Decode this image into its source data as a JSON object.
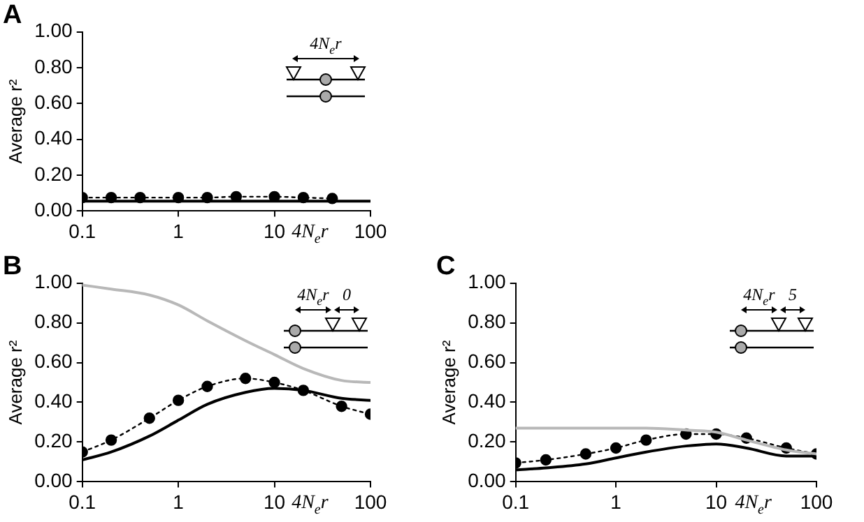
{
  "chart_data": [
    {
      "type": "line",
      "title": "A",
      "xlabel": "4N$_{e}$r",
      "ylabel": "Average r²",
      "annotations": [
        "4N$_{e}$r"
      ],
      "log": "x",
      "xlim": [
        0.1,
        100
      ],
      "xticks": [
        0.1,
        1,
        10,
        100
      ],
      "ylim": [
        0,
        1
      ],
      "yticks": [
        {
          "value": 0,
          "label": "0.00"
        },
        {
          "value": 0.2,
          "label": "0.20"
        },
        {
          "value": 0.4,
          "label": "0.40"
        },
        {
          "value": 0.6,
          "label": "0.60"
        },
        {
          "value": 0.8,
          "label": "0.80"
        },
        {
          "value": 1,
          "label": "1.00"
        }
      ],
      "grid": false,
      "legend": false,
      "series": [
        {
          "color": "#000000",
          "line_style": "solid",
          "marker": "none",
          "x": [
            0.1,
            1,
            10,
            100
          ],
          "values": [
            0.055,
            0.055,
            0.055,
            0.055
          ]
        },
        {
          "color": "#000000",
          "line_style": "dotted",
          "marker": "circle",
          "x": [
            0.1,
            0.2,
            0.4,
            1,
            2,
            4,
            10,
            20,
            40
          ],
          "values": [
            0.075,
            0.075,
            0.075,
            0.075,
            0.075,
            0.08,
            0.08,
            0.075,
            0.07
          ]
        }
      ]
    },
    {
      "type": "line",
      "title": "B",
      "xlabel": "4N$_{e}$r",
      "ylabel": "Average r²",
      "annotations": [
        "4N$_{e}$r",
        "0"
      ],
      "log": "x",
      "xlim": [
        0.1,
        100
      ],
      "xticks": [
        0.1,
        1,
        10,
        100
      ],
      "ylim": [
        0,
        1
      ],
      "yticks": [
        {
          "value": 0,
          "label": "0.00"
        },
        {
          "value": 0.2,
          "label": "0.20"
        },
        {
          "value": 0.4,
          "label": "0.40"
        },
        {
          "value": 0.6,
          "label": "0.60"
        },
        {
          "value": 0.8,
          "label": "0.80"
        },
        {
          "value": 1,
          "label": "1.00"
        }
      ],
      "grid": false,
      "legend": false,
      "series": [
        {
          "color": "#b8b8b8",
          "line_style": "solid",
          "marker": "none",
          "x": [
            0.1,
            0.2,
            0.5,
            1,
            2,
            5,
            10,
            20,
            50,
            100
          ],
          "values": [
            0.99,
            0.97,
            0.94,
            0.89,
            0.81,
            0.71,
            0.64,
            0.57,
            0.51,
            0.5
          ]
        },
        {
          "color": "#000000",
          "line_style": "solid",
          "marker": "none",
          "x": [
            0.1,
            0.2,
            0.5,
            1,
            2,
            5,
            10,
            20,
            50,
            100
          ],
          "values": [
            0.11,
            0.15,
            0.23,
            0.31,
            0.39,
            0.45,
            0.47,
            0.46,
            0.42,
            0.41
          ]
        },
        {
          "color": "#000000",
          "line_style": "dotted",
          "marker": "circle",
          "x": [
            0.1,
            0.2,
            0.5,
            1,
            2,
            5,
            10,
            20,
            50,
            100
          ],
          "values": [
            0.15,
            0.21,
            0.32,
            0.41,
            0.48,
            0.52,
            0.5,
            0.46,
            0.38,
            0.34
          ]
        }
      ]
    },
    {
      "type": "line",
      "title": "C",
      "xlabel": "4N$_{e}$r",
      "ylabel": "Average r²",
      "annotations": [
        "4N$_{e}$r",
        "5"
      ],
      "log": "x",
      "xlim": [
        0.1,
        100
      ],
      "xticks": [
        0.1,
        1,
        10,
        100
      ],
      "ylim": [
        0,
        1
      ],
      "yticks": [
        {
          "value": 0,
          "label": "0.00"
        },
        {
          "value": 0.2,
          "label": "0.20"
        },
        {
          "value": 0.4,
          "label": "0.40"
        },
        {
          "value": 0.6,
          "label": "0.60"
        },
        {
          "value": 0.8,
          "label": "0.80"
        },
        {
          "value": 1,
          "label": "1.00"
        }
      ],
      "grid": false,
      "legend": false,
      "series": [
        {
          "color": "#b8b8b8",
          "line_style": "solid",
          "marker": "none",
          "x": [
            0.1,
            0.2,
            0.5,
            1,
            2,
            5,
            10,
            20,
            50,
            100
          ],
          "values": [
            0.27,
            0.27,
            0.27,
            0.27,
            0.27,
            0.26,
            0.25,
            0.21,
            0.16,
            0.14
          ]
        },
        {
          "color": "#000000",
          "line_style": "solid",
          "marker": "none",
          "x": [
            0.1,
            0.2,
            0.5,
            1,
            2,
            5,
            10,
            20,
            50,
            100
          ],
          "values": [
            0.06,
            0.07,
            0.09,
            0.12,
            0.15,
            0.18,
            0.19,
            0.17,
            0.13,
            0.13
          ]
        },
        {
          "color": "#000000",
          "line_style": "dotted",
          "marker": "circle",
          "x": [
            0.1,
            0.2,
            0.5,
            1,
            2,
            5,
            10,
            20,
            50,
            100
          ],
          "values": [
            0.095,
            0.11,
            0.14,
            0.17,
            0.21,
            0.24,
            0.24,
            0.22,
            0.17,
            0.14
          ]
        }
      ]
    }
  ]
}
